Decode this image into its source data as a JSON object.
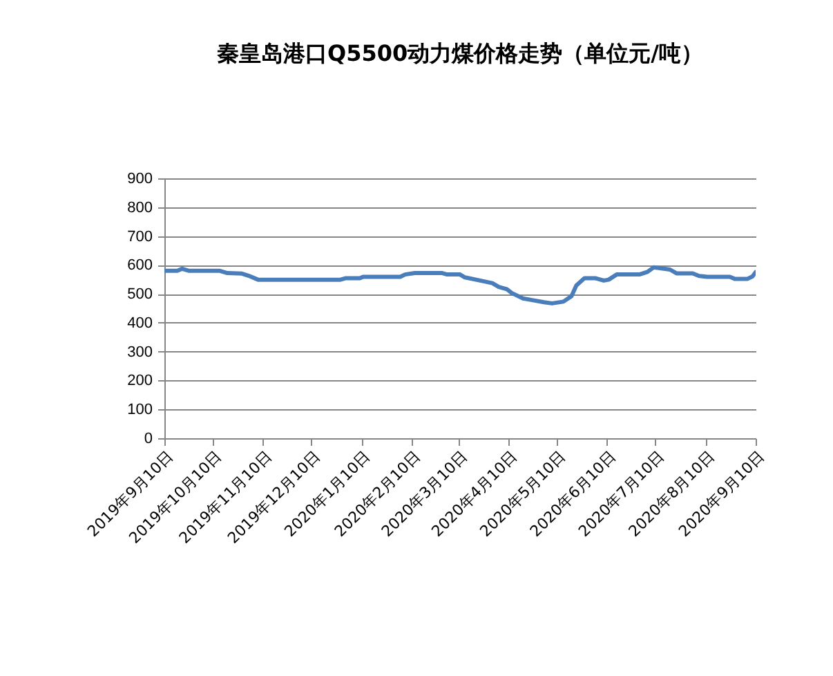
{
  "chart_data": {
    "type": "line",
    "title": "秦皇岛港口Q5500动力煤价格走势（单位元/吨）",
    "x": [
      "2019-09-10",
      "2019-09-18",
      "2019-09-21",
      "2019-09-25",
      "2019-10-14",
      "2019-10-19",
      "2019-10-28",
      "2019-11-01",
      "2019-11-07",
      "2019-12-28",
      "2019-12-31",
      "2020-01-09",
      "2020-01-11",
      "2020-02-03",
      "2020-02-06",
      "2020-02-12",
      "2020-02-29",
      "2020-03-03",
      "2020-03-11",
      "2020-03-14",
      "2020-03-26",
      "2020-03-31",
      "2020-04-04",
      "2020-04-09",
      "2020-04-12",
      "2020-04-19",
      "2020-04-24",
      "2020-05-02",
      "2020-05-07",
      "2020-05-14",
      "2020-05-19",
      "2020-05-22",
      "2020-05-27",
      "2020-06-03",
      "2020-06-08",
      "2020-06-11",
      "2020-06-16",
      "2020-06-30",
      "2020-07-05",
      "2020-07-09",
      "2020-07-19",
      "2020-07-23",
      "2020-08-02",
      "2020-08-06",
      "2020-08-11",
      "2020-08-25",
      "2020-08-28",
      "2020-09-05",
      "2020-09-08",
      "2020-09-10"
    ],
    "series": [
      {
        "color": "#4a7ebb",
        "values": [
          580,
          580,
          587,
          580,
          580,
          572,
          570,
          563,
          549,
          549,
          554,
          554,
          559,
          559,
          567,
          572,
          572,
          567,
          567,
          557,
          543,
          537,
          524,
          516,
          503,
          484,
          479,
          471,
          467,
          473,
          492,
          529,
          554,
          554,
          546,
          549,
          567,
          567,
          576,
          592,
          584,
          571,
          571,
          562,
          559,
          559,
          552,
          552,
          560,
          575
        ]
      }
    ],
    "xlim": [
      "2019-09-10",
      "2020-09-10"
    ],
    "xticks": [
      {
        "value": "2019-09-10",
        "label": "2019年9月10日"
      },
      {
        "value": "2019-10-10",
        "label": "2019年10月10日"
      },
      {
        "value": "2019-11-10",
        "label": "2019年11月10日"
      },
      {
        "value": "2019-12-10",
        "label": "2019年12月10日"
      },
      {
        "value": "2020-01-10",
        "label": "2020年1月10日"
      },
      {
        "value": "2020-02-10",
        "label": "2020年2月10日"
      },
      {
        "value": "2020-03-10",
        "label": "2020年3月10日"
      },
      {
        "value": "2020-04-10",
        "label": "2020年4月10日"
      },
      {
        "value": "2020-05-10",
        "label": "2020年5月10日"
      },
      {
        "value": "2020-06-10",
        "label": "2020年6月10日"
      },
      {
        "value": "2020-07-10",
        "label": "2020年7月10日"
      },
      {
        "value": "2020-08-10",
        "label": "2020年8月10日"
      },
      {
        "value": "2020-09-10",
        "label": "2020年9月10日"
      }
    ],
    "ylim": [
      0,
      900
    ],
    "yticks": [
      0,
      100,
      200,
      300,
      400,
      500,
      600,
      700,
      800,
      900
    ],
    "grid": "y",
    "marker": "none",
    "line_style": "solid"
  }
}
